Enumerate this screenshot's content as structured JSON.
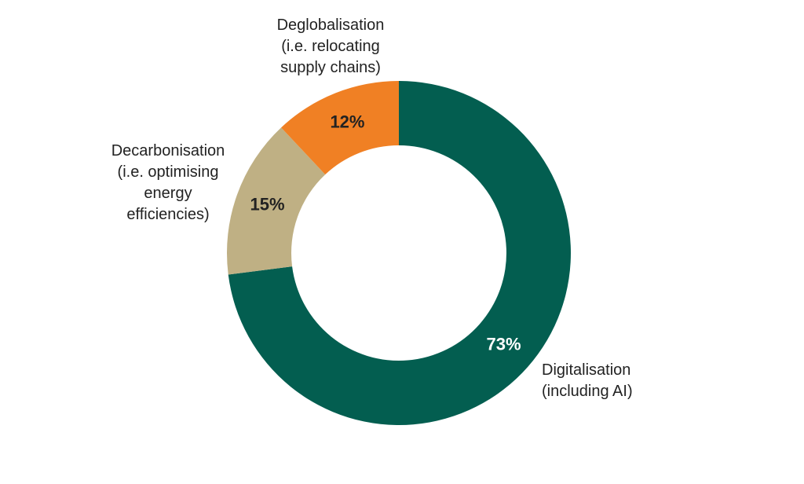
{
  "chart_data": {
    "type": "donut",
    "categories": [
      [
        "Digitalisation",
        "(including AI)"
      ],
      [
        "Decarbonisation",
        "(i.e. optimising",
        "energy",
        "efficiencies)"
      ],
      [
        "Deglobalisation",
        "(i.e. relocating",
        "supply chains)"
      ]
    ],
    "values": [
      73,
      15,
      12
    ],
    "value_labels": [
      "73%",
      "15%",
      "12%"
    ],
    "colors": [
      "#035e50",
      "#bfb084",
      "#f08024"
    ],
    "value_label_colors": [
      "#ffffff",
      "#222222",
      "#222222"
    ]
  }
}
